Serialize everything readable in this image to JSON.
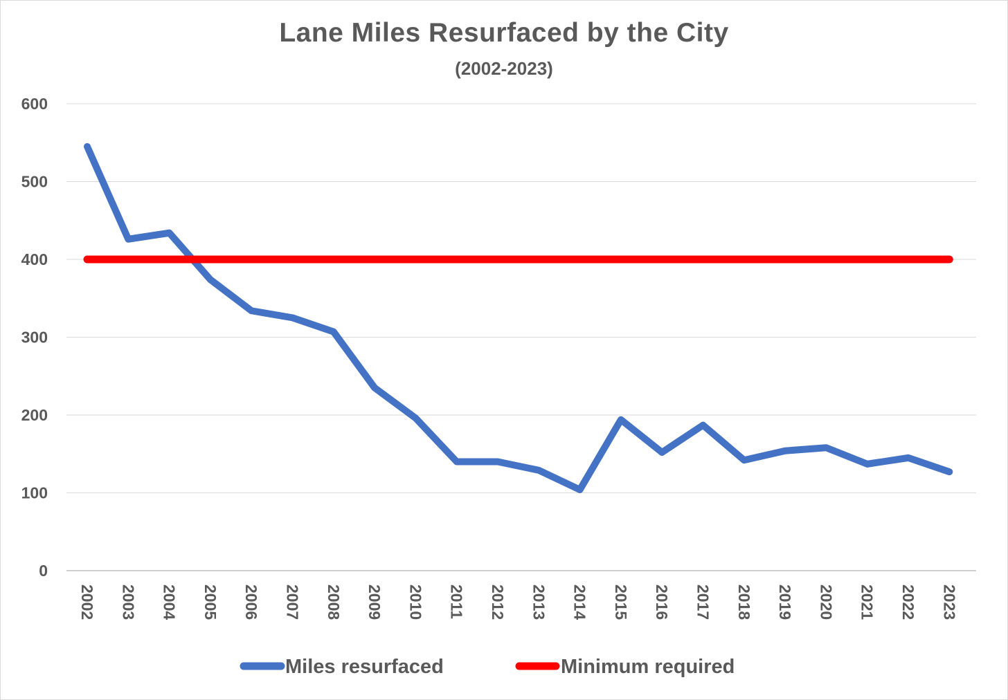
{
  "chart_data": {
    "type": "line",
    "title": "Lane Miles Resurfaced by the City",
    "subtitle": "(2002-2023)",
    "xlabel": "",
    "ylabel": "",
    "ylim": [
      0,
      600
    ],
    "yticks": [
      0,
      100,
      200,
      300,
      400,
      500,
      600
    ],
    "grid": true,
    "legend_position": "bottom",
    "categories": [
      "2002",
      "2003",
      "2004",
      "2005",
      "2006",
      "2007",
      "2008",
      "2009",
      "2010",
      "2011",
      "2012",
      "2013",
      "2014",
      "2015",
      "2016",
      "2017",
      "2018",
      "2019",
      "2020",
      "2021",
      "2022",
      "2023"
    ],
    "series": [
      {
        "name": "Miles resurfaced",
        "color": "#4472C4",
        "values": [
          545,
          426,
          434,
          374,
          334,
          325,
          307,
          235,
          196,
          140,
          140,
          129,
          104,
          194,
          152,
          187,
          142,
          154,
          158,
          137,
          145,
          127
        ]
      },
      {
        "name": "Minimum required",
        "color": "#FF0000",
        "values": [
          400,
          400,
          400,
          400,
          400,
          400,
          400,
          400,
          400,
          400,
          400,
          400,
          400,
          400,
          400,
          400,
          400,
          400,
          400,
          400,
          400,
          400
        ]
      }
    ]
  }
}
